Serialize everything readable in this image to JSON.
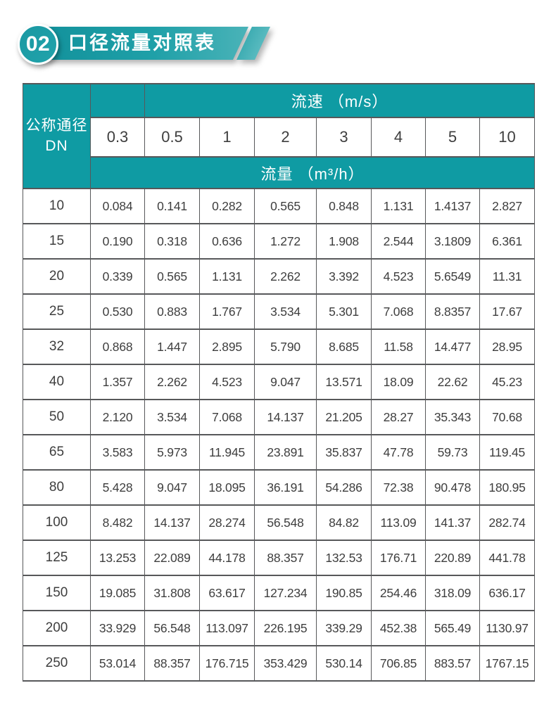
{
  "header": {
    "badge": "02",
    "title": "口径流量对照表"
  },
  "colors": {
    "teal": "#0f9ba3",
    "banner_gradient_start": "#12919b",
    "banner_gradient_end": "#4ab3b8",
    "table_border": "#57585a",
    "text_dark": "#3e3e3e"
  },
  "table": {
    "corner_line1": "公称通径",
    "corner_line2": "DN",
    "velocity_header": "流速 （m/s）",
    "flow_header": "流量 （m³/h）",
    "velocities": [
      "0.3",
      "0.5",
      "1",
      "2",
      "3",
      "4",
      "5",
      "10"
    ],
    "rows": [
      {
        "dn": "10",
        "values": [
          "0.084",
          "0.141",
          "0.282",
          "0.565",
          "0.848",
          "1.131",
          "1.4137",
          "2.827"
        ]
      },
      {
        "dn": "15",
        "values": [
          "0.190",
          "0.318",
          "0.636",
          "1.272",
          "1.908",
          "2.544",
          "3.1809",
          "6.361"
        ]
      },
      {
        "dn": "20",
        "values": [
          "0.339",
          "0.565",
          "1.131",
          "2.262",
          "3.392",
          "4.523",
          "5.6549",
          "11.31"
        ]
      },
      {
        "dn": "25",
        "values": [
          "0.530",
          "0.883",
          "1.767",
          "3.534",
          "5.301",
          "7.068",
          "8.8357",
          "17.67"
        ]
      },
      {
        "dn": "32",
        "values": [
          "0.868",
          "1.447",
          "2.895",
          "5.790",
          "8.685",
          "11.58",
          "14.477",
          "28.95"
        ]
      },
      {
        "dn": "40",
        "values": [
          "1.357",
          "2.262",
          "4.523",
          "9.047",
          "13.571",
          "18.09",
          "22.62",
          "45.23"
        ]
      },
      {
        "dn": "50",
        "values": [
          "2.120",
          "3.534",
          "7.068",
          "14.137",
          "21.205",
          "28.27",
          "35.343",
          "70.68"
        ]
      },
      {
        "dn": "65",
        "values": [
          "3.583",
          "5.973",
          "11.945",
          "23.891",
          "35.837",
          "47.78",
          "59.73",
          "119.45"
        ]
      },
      {
        "dn": "80",
        "values": [
          "5.428",
          "9.047",
          "18.095",
          "36.191",
          "54.286",
          "72.38",
          "90.478",
          "180.95"
        ]
      },
      {
        "dn": "100",
        "values": [
          "8.482",
          "14.137",
          "28.274",
          "56.548",
          "84.82",
          "113.09",
          "141.37",
          "282.74"
        ]
      },
      {
        "dn": "125",
        "values": [
          "13.253",
          "22.089",
          "44.178",
          "88.357",
          "132.53",
          "176.71",
          "220.89",
          "441.78"
        ]
      },
      {
        "dn": "150",
        "values": [
          "19.085",
          "31.808",
          "63.617",
          "127.234",
          "190.85",
          "254.46",
          "318.09",
          "636.17"
        ]
      },
      {
        "dn": "200",
        "values": [
          "33.929",
          "56.548",
          "113.097",
          "226.195",
          "339.29",
          "452.38",
          "565.49",
          "1130.97"
        ]
      },
      {
        "dn": "250",
        "values": [
          "53.014",
          "88.357",
          "176.715",
          "353.429",
          "530.14",
          "706.85",
          "883.57",
          "1767.15"
        ]
      }
    ]
  }
}
